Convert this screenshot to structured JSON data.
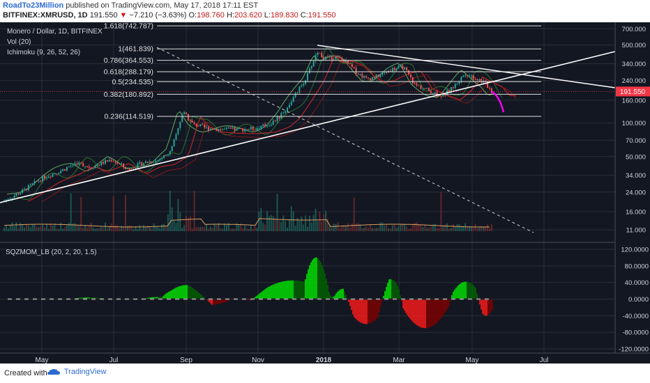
{
  "header": {
    "author": "RoadTo23Million",
    "published": "published on TradingView.com, May 17, 2018 17:11 EST",
    "symbol": "BITFINEX:XMRUSD, 1D",
    "last": "191.550",
    "change_arrow": "▼",
    "change": "−7.210 (−3.63%)",
    "o_label": "O:",
    "o_val": "198.760",
    "h_label": "H:",
    "h_val": "203.620",
    "l_label": "L:",
    "l_val": "189.830",
    "c_label": "C:",
    "c_val": "191.550"
  },
  "legend": {
    "title": "Monero / Dollar, 1D, BITFINEX",
    "vol": "Vol (20)",
    "ichimoku": "Ichimoku (9, 26, 52, 26)",
    "sqz": "SQZMOM_LB (20, 2, 20, 1.5)"
  },
  "price_badge": "191.550",
  "footer": {
    "created": "Created with",
    "brand": "TradingView"
  },
  "colors": {
    "background": "#131722",
    "grid": "#2a2e39",
    "axis_text": "#d1d4dc",
    "up": "#26a69a",
    "down": "#ef5350",
    "fib": "#e0e0e0",
    "trend": "#ffffff",
    "forecast": "#ff00ff",
    "badge": "#f23645",
    "mom_up_strong": "#00e600",
    "mom_up_weak": "#006400",
    "mom_down_strong": "#ff1a1a",
    "mom_down_weak": "#800000"
  },
  "chart_data": [
    {
      "type": "candlestick",
      "title": "Monero / Dollar, 1D, BITFINEX",
      "log_scale": true,
      "x_ticks": [
        "May",
        "Jul",
        "Sep",
        "Nov",
        "2018",
        "Mar",
        "May",
        "Jul"
      ],
      "y_ticks": [
        "700.000",
        "500.000",
        "340.000",
        "240.000",
        "160.000",
        "100.000",
        "70.000",
        "50.000",
        "34.000",
        "24.000",
        "16.000",
        "11.000"
      ],
      "ylim": [
        9,
        800
      ],
      "fibonacci": [
        {
          "label": "1.618(742.787)",
          "value": 742.787
        },
        {
          "label": "1(461.839)",
          "value": 461.839
        },
        {
          "label": "0.786(364.553)",
          "value": 364.553
        },
        {
          "label": "0.618(288.179)",
          "value": 288.179
        },
        {
          "label": "0.5(234.535)",
          "value": 234.535
        },
        {
          "label": "0.382(180.892)",
          "value": 180.892
        },
        {
          "label": "0.236(114.519)",
          "value": 114.519
        }
      ],
      "last_price": 191.55,
      "indicators": [
        "Vol (20)",
        "Ichimoku (9, 26, 52, 26)"
      ]
    },
    {
      "type": "bar",
      "title": "SQZMOM_LB (20, 2, 20, 1.5)",
      "y_ticks": [
        "120.0000",
        "80.0000",
        "40.0000",
        "0.0000",
        "-40.0000",
        "-80.0000",
        "-120.0000"
      ],
      "ylim": [
        -130,
        130
      ]
    }
  ]
}
